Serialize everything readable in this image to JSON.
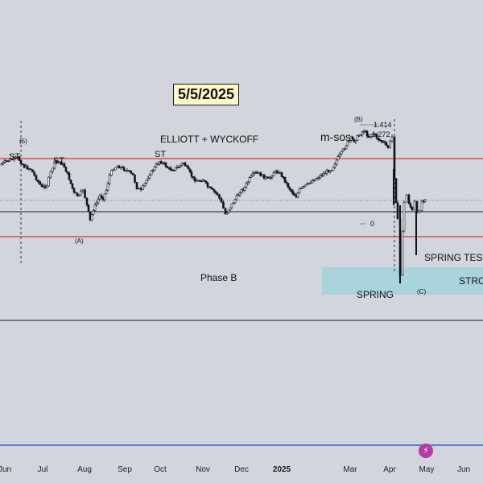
{
  "chart_data": {
    "type": "candlestick",
    "title": "ELLIOTT + WYCKOFF",
    "date_badge": "5/5/2025",
    "x_ticks": [
      "Jun",
      "Jul",
      "Aug",
      "Sep",
      "Oct",
      "Nov",
      "Dec",
      "2025",
      "Mar",
      "Apr",
      "May",
      "Jun"
    ],
    "series": [
      {
        "name": "",
        "close_path": [
          [
            0,
            205
          ],
          [
            8,
            200
          ],
          [
            15,
            198
          ],
          [
            22,
            196
          ],
          [
            30,
            207
          ],
          [
            38,
            210
          ],
          [
            45,
            222
          ],
          [
            52,
            233
          ],
          [
            58,
            230
          ],
          [
            63,
            214
          ],
          [
            68,
            202
          ],
          [
            74,
            201
          ],
          [
            80,
            207
          ],
          [
            86,
            222
          ],
          [
            92,
            240
          ],
          [
            98,
            244
          ],
          [
            103,
            235
          ],
          [
            108,
            255
          ],
          [
            112,
            274
          ],
          [
            116,
            260
          ],
          [
            120,
            252
          ],
          [
            124,
            243
          ],
          [
            128,
            246
          ],
          [
            132,
            236
          ],
          [
            136,
            218
          ],
          [
            141,
            209
          ],
          [
            146,
            206
          ],
          [
            152,
            209
          ],
          [
            158,
            212
          ],
          [
            165,
            218
          ],
          [
            170,
            233
          ],
          [
            175,
            237
          ],
          [
            180,
            228
          ],
          [
            186,
            216
          ],
          [
            192,
            208
          ],
          [
            198,
            200
          ],
          [
            204,
            204
          ],
          [
            210,
            210
          ],
          [
            216,
            210
          ],
          [
            222,
            207
          ],
          [
            228,
            202
          ],
          [
            234,
            212
          ],
          [
            240,
            222
          ],
          [
            246,
            225
          ],
          [
            252,
            223
          ],
          [
            258,
            232
          ],
          [
            264,
            237
          ],
          [
            270,
            241
          ],
          [
            275,
            252
          ],
          [
            280,
            266
          ],
          [
            286,
            257
          ],
          [
            292,
            248
          ],
          [
            298,
            238
          ],
          [
            304,
            233
          ],
          [
            310,
            222
          ],
          [
            316,
            215
          ],
          [
            322,
            216
          ],
          [
            328,
            220
          ],
          [
            334,
            223
          ],
          [
            340,
            214
          ],
          [
            346,
            213
          ],
          [
            352,
            221
          ],
          [
            358,
            232
          ],
          [
            364,
            240
          ],
          [
            368,
            244
          ],
          [
            372,
            236
          ],
          [
            376,
            233
          ],
          [
            382,
            229
          ],
          [
            388,
            224
          ],
          [
            394,
            221
          ],
          [
            400,
            217
          ],
          [
            406,
            213
          ],
          [
            412,
            210
          ],
          [
            418,
            199
          ],
          [
            424,
            190
          ],
          [
            430,
            180
          ],
          [
            436,
            172
          ],
          [
            440,
            175
          ],
          [
            446,
            168
          ],
          [
            452,
            162
          ],
          [
            458,
            170
          ],
          [
            464,
            166
          ],
          [
            470,
            173
          ],
          [
            476,
            177
          ],
          [
            482,
            183
          ],
          [
            487,
            170
          ],
          [
            490,
            220
          ],
          [
            492,
            250
          ],
          [
            494,
            274
          ],
          [
            497,
            342
          ],
          [
            500,
            286
          ],
          [
            502,
            252
          ],
          [
            505,
            242
          ],
          [
            508,
            252
          ],
          [
            512,
            262
          ],
          [
            515,
            251
          ],
          [
            518,
            266
          ],
          [
            521,
            260
          ],
          [
            524,
            250
          ],
          [
            528,
            246
          ]
        ]
      }
    ],
    "levels": [
      {
        "name": "upper-range",
        "color": "#e0323c",
        "kind": "resistance"
      },
      {
        "name": "mid-range",
        "color": "#1a1a1a",
        "kind": "mid"
      },
      {
        "name": "lower-range",
        "color": "#e0323c",
        "kind": "support"
      },
      {
        "name": "base",
        "color": "#1a1a1a",
        "kind": "floor"
      }
    ],
    "annotations": {
      "wave_5": "(5)",
      "wave_a": "(A)",
      "wave_b": "(B)",
      "wave_c": "(C)",
      "st_1": "ST",
      "st_2": "ST",
      "st_3": "ST",
      "msos": "m-sos",
      "fib_1414": "1.414",
      "fib_1272": "1.272",
      "fib_0": "0",
      "phase_b": "Phase B",
      "spring": "SPRING",
      "spring_test": "SPRING TEST",
      "strong": "STRO"
    },
    "colors": {
      "background": "#d2d5db",
      "candle": "#0f1320",
      "resistance": "#e0323c",
      "demand_zone": "#a9d4dc",
      "bottom_line": "#2f62d4",
      "badge": "#fcf6c8"
    }
  }
}
